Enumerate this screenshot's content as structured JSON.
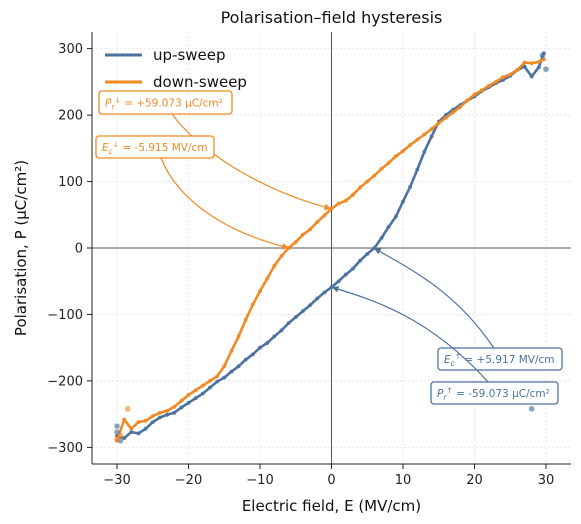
{
  "chart_data": {
    "type": "line",
    "title": "Polarisation–field hysteresis",
    "xlabel": "Electric field, E (MV/cm)",
    "ylabel": "Polarisation, P (μC/cm²)",
    "xlim": [
      -33.5,
      33.5
    ],
    "ylim": [
      -325,
      325
    ],
    "xticks": [
      -30,
      -20,
      -10,
      0,
      10,
      20,
      30
    ],
    "yticks": [
      -300,
      -200,
      -100,
      0,
      100,
      200,
      300
    ],
    "grid": true,
    "legend": "top-left",
    "series": [
      {
        "name": "up-sweep",
        "color": "#4c72a0",
        "x": [
          -30,
          -29,
          -28,
          -27,
          -26,
          -25,
          -24,
          -23,
          -22,
          -21,
          -20,
          -19,
          -18,
          -17,
          -16,
          -15,
          -14,
          -13,
          -12,
          -11,
          -10,
          -9,
          -8,
          -7,
          -6,
          -5,
          -4,
          -3,
          -2,
          -1,
          0,
          1,
          2,
          3,
          4,
          5,
          6,
          7,
          8,
          9,
          10,
          11,
          12,
          13,
          14,
          15,
          16,
          17,
          18,
          19,
          20,
          21,
          22,
          23,
          24,
          25,
          26,
          27,
          28,
          29,
          29.7
        ],
        "y": [
          -283,
          -286,
          -277,
          -279,
          -272,
          -262,
          -255,
          -251,
          -248,
          -240,
          -233,
          -226,
          -219,
          -210,
          -201,
          -195,
          -186,
          -178,
          -168,
          -160,
          -150,
          -143,
          -133,
          -124,
          -113,
          -104,
          -95,
          -86,
          -76,
          -67,
          -59,
          -50,
          -40,
          -31,
          -19,
          -9,
          0,
          15,
          32,
          47,
          70,
          92,
          118,
          145,
          168,
          190,
          200,
          208,
          215,
          222,
          228,
          236,
          242,
          248,
          253,
          259,
          268,
          273,
          258,
          272,
          293
        ]
      },
      {
        "name": "down-sweep",
        "color": "#ef8a24",
        "x": [
          29.7,
          29,
          28,
          27,
          26,
          25,
          24,
          23,
          22,
          21,
          20,
          19,
          18,
          17,
          16,
          15,
          14,
          13,
          12,
          11,
          10,
          9,
          8,
          7,
          6,
          5,
          4,
          3,
          2,
          1,
          0,
          -1,
          -2,
          -3,
          -4,
          -5,
          -6,
          -7,
          -8,
          -9,
          -10,
          -11,
          -12,
          -13,
          -14,
          -15,
          -16,
          -17,
          -18,
          -19,
          -20,
          -21,
          -22,
          -23,
          -24,
          -25,
          -26,
          -27,
          -28,
          -29,
          -30
        ],
        "y": [
          284,
          280,
          278,
          279,
          268,
          261,
          257,
          250,
          244,
          237,
          231,
          222,
          212,
          204,
          196,
          188,
          179,
          171,
          163,
          155,
          146,
          138,
          128,
          119,
          109,
          100,
          91,
          80,
          71,
          67,
          59,
          49,
          39,
          28,
          20,
          9,
          0,
          -12,
          -27,
          -46,
          -65,
          -85,
          -108,
          -133,
          -155,
          -178,
          -193,
          -200,
          -207,
          -214,
          -221,
          -230,
          -239,
          -245,
          -248,
          -253,
          -260,
          -262,
          -272,
          -258,
          -290
        ]
      }
    ],
    "scatter_up": [
      [
        -30,
        -277
      ],
      [
        -30,
        -268
      ],
      [
        -29.5,
        -290
      ],
      [
        28,
        -242
      ],
      [
        29.5,
        290
      ],
      [
        30,
        269
      ]
    ],
    "scatter_down": [
      [
        -28.5,
        -242
      ],
      [
        -30,
        -288
      ],
      [
        -29.5,
        -282
      ]
    ],
    "annotations": [
      {
        "text": "P_r^↓ = +59.073 μC/cm²",
        "label_main": "P",
        "label_sub": "r",
        "label_sup": "↓",
        "label_value": "= +59.073 μC/cm²",
        "color": "#ef8a24",
        "point": [
          0,
          59.073
        ],
        "box_anchor": "upper-left"
      },
      {
        "text": "E_c^↓ = -5.915 MV/cm",
        "label_main": "E",
        "label_sub": "c",
        "label_sup": "↓",
        "label_value": "= -5.915 MV/cm",
        "color": "#ef8a24",
        "point": [
          -5.915,
          0
        ],
        "box_anchor": "upper-left"
      },
      {
        "text": "E_c^↑ = +5.917 MV/cm",
        "label_main": "E",
        "label_sub": "c",
        "label_sup": "↑",
        "label_value": "= +5.917 MV/cm",
        "color": "#4c72a0",
        "point": [
          5.917,
          0
        ],
        "box_anchor": "lower-right"
      },
      {
        "text": "P_r^↑ = -59.073 μC/cm²",
        "label_main": "P",
        "label_sub": "r",
        "label_sup": "↑",
        "label_value": "= -59.073 μC/cm²",
        "color": "#4c72a0",
        "point": [
          0,
          -59.073
        ],
        "box_anchor": "lower-right"
      }
    ]
  }
}
